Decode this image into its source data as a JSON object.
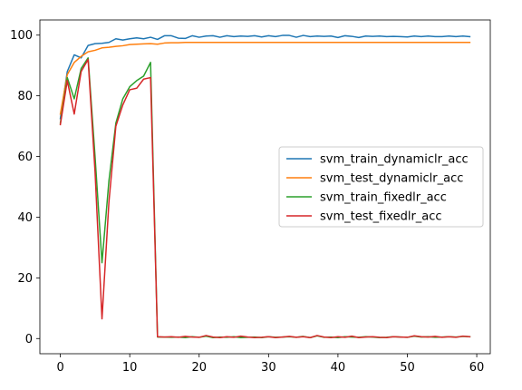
{
  "chart_data": {
    "type": "line",
    "title": "",
    "xlabel": "",
    "ylabel": "",
    "xlim": [
      -2.95,
      61.95
    ],
    "ylim": [
      -5.0,
      105.0
    ],
    "xticks": [
      0,
      10,
      20,
      30,
      40,
      50,
      60
    ],
    "yticks": [
      0,
      20,
      40,
      60,
      80,
      100
    ],
    "grid": false,
    "legend_position": "center-right",
    "series": [
      {
        "name": "svm_train_dynamiclr_acc",
        "color": "#1f77b4",
        "x": [
          0,
          1,
          2,
          3,
          4,
          5,
          6,
          7,
          8,
          9,
          10,
          11,
          12,
          13,
          14,
          15,
          16,
          17,
          18,
          19,
          20,
          21,
          22,
          23,
          24,
          25,
          26,
          27,
          28,
          29,
          30,
          31,
          32,
          33,
          34,
          35,
          36,
          37,
          38,
          39,
          40,
          41,
          42,
          43,
          44,
          45,
          46,
          47,
          48,
          49,
          50,
          51,
          52,
          53,
          54,
          55,
          56,
          57,
          58,
          59
        ],
        "values": [
          72.5,
          88.0,
          93.5,
          92.5,
          96.6,
          97.2,
          97.3,
          97.6,
          98.8,
          98.4,
          98.8,
          99.1,
          98.8,
          99.3,
          98.6,
          99.8,
          99.8,
          99.0,
          98.9,
          99.8,
          99.3,
          99.7,
          99.8,
          99.3,
          99.8,
          99.5,
          99.7,
          99.6,
          99.8,
          99.4,
          99.8,
          99.5,
          99.9,
          99.9,
          99.3,
          99.9,
          99.5,
          99.7,
          99.6,
          99.7,
          99.2,
          99.8,
          99.6,
          99.2,
          99.7,
          99.6,
          99.7,
          99.5,
          99.6,
          99.5,
          99.4,
          99.7,
          99.5,
          99.7,
          99.5,
          99.5,
          99.7,
          99.5,
          99.7,
          99.5
        ]
      },
      {
        "name": "svm_test_dynamiclr_acc",
        "color": "#ff7f0e",
        "x": [
          0,
          1,
          2,
          3,
          4,
          5,
          6,
          7,
          8,
          9,
          10,
          11,
          12,
          13,
          14,
          15,
          16,
          17,
          18,
          19,
          20,
          21,
          22,
          23,
          24,
          25,
          26,
          27,
          28,
          29,
          30,
          31,
          32,
          33,
          34,
          35,
          36,
          37,
          38,
          39,
          40,
          41,
          42,
          43,
          44,
          45,
          46,
          47,
          48,
          49,
          50,
          51,
          52,
          53,
          54,
          55,
          56,
          57,
          58,
          59
        ],
        "values": [
          74.0,
          87.0,
          91.0,
          93.0,
          94.5,
          95.0,
          95.8,
          96.0,
          96.3,
          96.5,
          96.9,
          97.0,
          97.1,
          97.2,
          97.0,
          97.4,
          97.5,
          97.5,
          97.6,
          97.6,
          97.6,
          97.6,
          97.6,
          97.6,
          97.6,
          97.6,
          97.6,
          97.6,
          97.6,
          97.6,
          97.6,
          97.6,
          97.6,
          97.6,
          97.6,
          97.6,
          97.6,
          97.6,
          97.6,
          97.6,
          97.6,
          97.6,
          97.6,
          97.6,
          97.6,
          97.6,
          97.6,
          97.6,
          97.6,
          97.6,
          97.6,
          97.6,
          97.6,
          97.6,
          97.6,
          97.6,
          97.6,
          97.6,
          97.6,
          97.6
        ]
      },
      {
        "name": "svm_train_fixedlr_acc",
        "color": "#2ca02c",
        "x": [
          0,
          1,
          2,
          3,
          4,
          5,
          6,
          7,
          8,
          9,
          10,
          11,
          12,
          13,
          14,
          15,
          16,
          17,
          18,
          19,
          20,
          21,
          22,
          23,
          24,
          25,
          26,
          27,
          28,
          29,
          30,
          31,
          32,
          33,
          34,
          35,
          36,
          37,
          38,
          39,
          40,
          41,
          42,
          43,
          44,
          45,
          46,
          47,
          48,
          49,
          50,
          51,
          52,
          53,
          54,
          55,
          56,
          57,
          58,
          59
        ],
        "values": [
          71.0,
          86.0,
          79.0,
          89.0,
          92.5,
          60.0,
          25.0,
          52.0,
          71.0,
          79.0,
          83.0,
          85.0,
          86.5,
          91.0,
          0.5,
          0.5,
          0.4,
          0.5,
          0.3,
          0.6,
          0.4,
          0.8,
          0.3,
          0.5,
          0.4,
          0.6,
          0.3,
          0.4,
          0.5,
          0.3,
          0.6,
          0.4,
          0.5,
          0.6,
          0.4,
          0.7,
          0.3,
          0.9,
          0.4,
          0.5,
          0.3,
          0.6,
          0.5,
          0.4,
          0.6,
          0.5,
          0.3,
          0.4,
          0.6,
          0.5,
          0.4,
          0.8,
          0.5,
          0.6,
          0.4,
          0.5,
          0.6,
          0.5,
          0.7,
          0.6
        ]
      },
      {
        "name": "svm_test_fixedlr_acc",
        "color": "#d62728",
        "x": [
          0,
          1,
          2,
          3,
          4,
          5,
          6,
          7,
          8,
          9,
          10,
          11,
          12,
          13,
          14,
          15,
          16,
          17,
          18,
          19,
          20,
          21,
          22,
          23,
          24,
          25,
          26,
          27,
          28,
          29,
          30,
          31,
          32,
          33,
          34,
          35,
          36,
          37,
          38,
          39,
          40,
          41,
          42,
          43,
          44,
          45,
          46,
          47,
          48,
          49,
          50,
          51,
          52,
          53,
          54,
          55,
          56,
          57,
          58,
          59
        ],
        "values": [
          70.5,
          85.0,
          74.0,
          88.0,
          92.0,
          55.0,
          6.5,
          45.0,
          70.0,
          77.0,
          82.0,
          82.5,
          85.5,
          86.0,
          0.6,
          0.5,
          0.6,
          0.4,
          0.7,
          0.5,
          0.4,
          1.0,
          0.5,
          0.3,
          0.6,
          0.4,
          0.8,
          0.5,
          0.3,
          0.4,
          0.6,
          0.3,
          0.5,
          0.7,
          0.4,
          0.6,
          0.3,
          1.0,
          0.5,
          0.3,
          0.6,
          0.4,
          0.8,
          0.3,
          0.5,
          0.6,
          0.4,
          0.3,
          0.6,
          0.5,
          0.4,
          0.9,
          0.6,
          0.5,
          0.7,
          0.4,
          0.6,
          0.4,
          0.8,
          0.6
        ]
      }
    ]
  }
}
